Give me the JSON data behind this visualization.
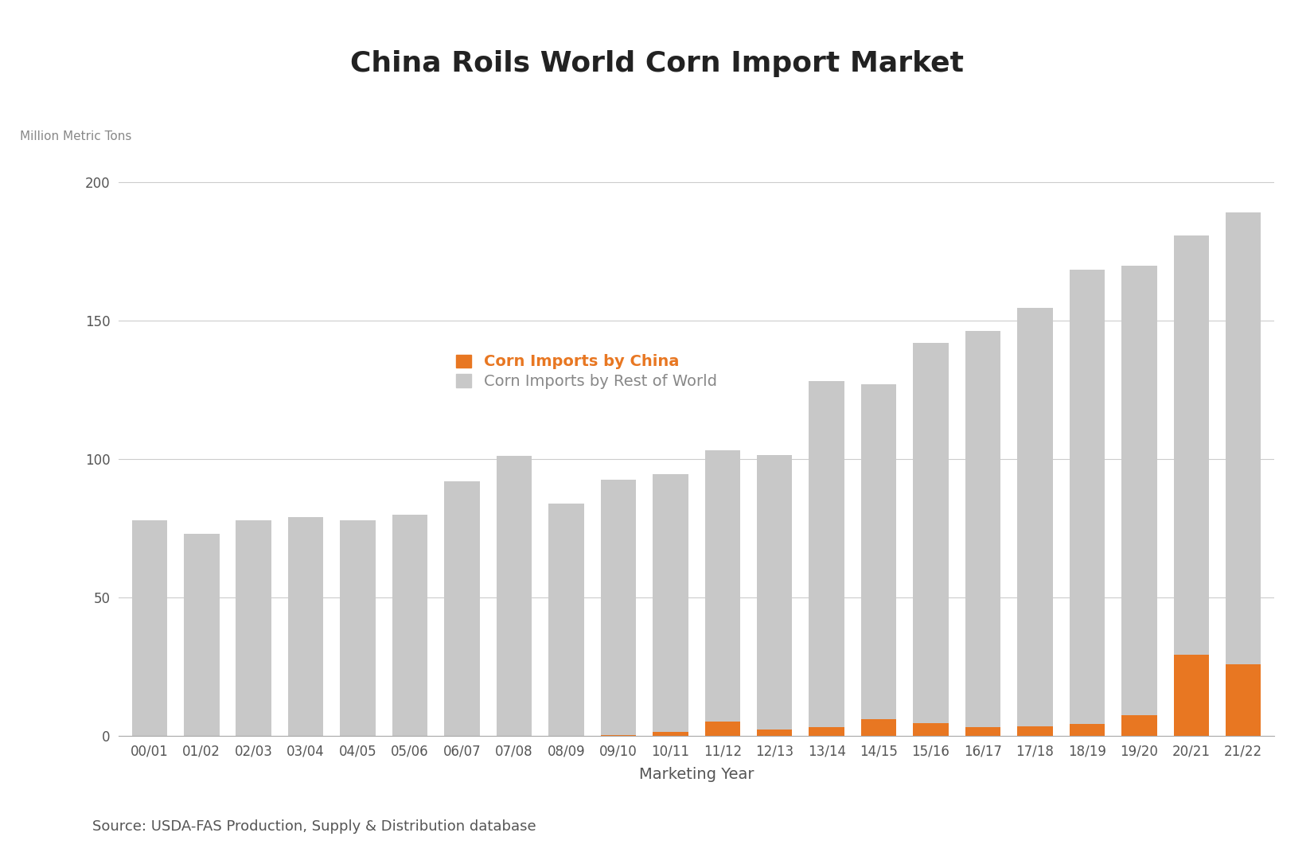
{
  "title": "China Roils World Corn Import Market",
  "ylabel": "Million Metric Tons",
  "xlabel": "Marketing Year",
  "source": "Source: USDA-FAS Production, Supply & Distribution database",
  "categories": [
    "00/01",
    "01/02",
    "02/03",
    "03/04",
    "04/05",
    "05/06",
    "06/07",
    "07/08",
    "08/09",
    "09/10",
    "10/11",
    "11/12",
    "12/13",
    "13/14",
    "14/15",
    "15/16",
    "16/17",
    "17/18",
    "18/19",
    "19/20",
    "20/21",
    "21/22"
  ],
  "china_imports": [
    0,
    0,
    0,
    0,
    0,
    0,
    0,
    0,
    0,
    0.5,
    1.5,
    5.2,
    2.5,
    3.2,
    6.0,
    4.8,
    3.2,
    3.5,
    4.4,
    7.6,
    29.5,
    26.0
  ],
  "row_imports": [
    78,
    73,
    78,
    79,
    78,
    80,
    92,
    101,
    84,
    92,
    93,
    98,
    99,
    125,
    121,
    137,
    143,
    151,
    164,
    162,
    151,
    163
  ],
  "china_color": "#E87722",
  "row_color": "#C8C8C8",
  "background_color": "#FFFFFF",
  "ylim": [
    0,
    210
  ],
  "yticks": [
    0,
    50,
    100,
    150,
    200
  ],
  "legend_china_label": "Corn Imports by China",
  "legend_row_label": "Corn Imports by Rest of World",
  "title_fontsize": 26,
  "axis_label_fontsize": 11,
  "tick_fontsize": 12,
  "legend_fontsize": 14,
  "source_fontsize": 13
}
